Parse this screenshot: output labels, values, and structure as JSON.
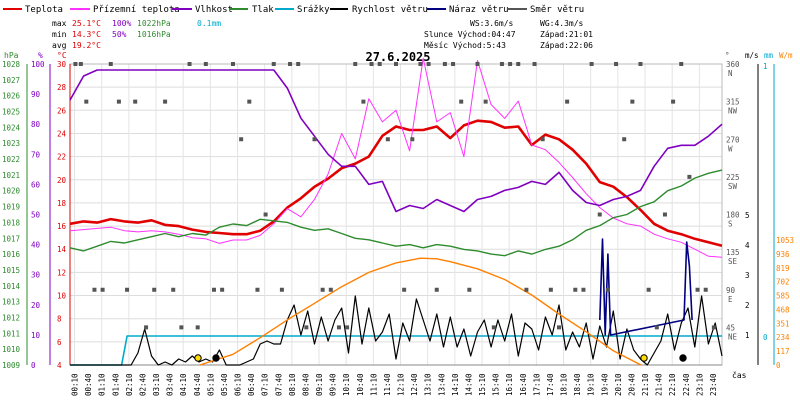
{
  "title": "27.6.2025",
  "legend": [
    {
      "label": "Teplota",
      "color": "#e00000"
    },
    {
      "label": "Přízemní teplota",
      "color": "#ff33ff"
    },
    {
      "label": "Vlhkost",
      "color": "#8000c0"
    },
    {
      "label": "Tlak",
      "color": "#2e8b2e"
    },
    {
      "label": "Srážky",
      "color": "#00aacc"
    },
    {
      "label": "Rychlost větru",
      "color": "#000000"
    },
    {
      "label": "Náraz větru",
      "color": "#000080"
    },
    {
      "label": "Směr větru",
      "color": "#555555"
    }
  ],
  "stats": {
    "max_label": "max",
    "max_temp": "25.1°C",
    "max_hum": "100%",
    "max_press": "1022hPa",
    "max_rain": "0.1mm",
    "min_label": "min",
    "min_temp": "14.3°C",
    "min_hum": "50%",
    "min_press": "1016hPa",
    "avg_label": "avg",
    "avg_temp": "19.2°C"
  },
  "info": {
    "ws": "WS:3.6m/s",
    "wg": "WG:4.3m/s",
    "sun": "Slunce Východ:04:47",
    "sun_set": "Západ:21:01",
    "moon": "Měsíc  Východ:5:43",
    "moon_set": "Západ:22:06"
  },
  "axes": {
    "hpa_unit": "hPa",
    "pct_unit": "%",
    "deg_unit": "°C",
    "dir_unit": "°",
    "ms_unit": "m/s",
    "mm_unit": "mm",
    "wm_unit": "W/m",
    "x_unit": "čas",
    "hpa_ticks": [
      "1028",
      "1027",
      "1026",
      "1025",
      "1024",
      "1023",
      "1022",
      "1021",
      "1020",
      "1019",
      "1018",
      "1017",
      "1016",
      "1015",
      "1014",
      "1013",
      "1012",
      "1011",
      "1010",
      "1009"
    ],
    "pct_ticks": [
      "100",
      "90",
      "80",
      "70",
      "60",
      "50",
      "40",
      "30",
      "20",
      "10",
      "0"
    ],
    "deg_ticks": [
      "30",
      "28",
      "26",
      "24",
      "22",
      "20",
      "18",
      "16",
      "14",
      "12",
      "10",
      "8",
      "6",
      "4"
    ],
    "dir_ticks": [
      {
        "deg": "360",
        "dir": "N"
      },
      {
        "deg": "315",
        "dir": "NW"
      },
      {
        "deg": "270",
        "dir": "W"
      },
      {
        "deg": "225",
        "dir": "SW"
      },
      {
        "deg": "180",
        "dir": "S"
      },
      {
        "deg": "135",
        "dir": "SE"
      },
      {
        "deg": "90",
        "dir": "E"
      },
      {
        "deg": "45",
        "dir": "NE"
      }
    ],
    "ms_ticks": [
      "5",
      "4",
      "3",
      "2",
      "1"
    ],
    "mm_ticks": [
      "1",
      "0"
    ],
    "solar_ticks": [
      "1053",
      "936",
      "819",
      "702",
      "585",
      "468",
      "351",
      "234",
      "117",
      "0"
    ],
    "x_ticks": [
      "00:10",
      "00:40",
      "01:10",
      "01:40",
      "02:10",
      "02:40",
      "03:10",
      "03:40",
      "04:10",
      "04:40",
      "05:10",
      "05:40",
      "06:10",
      "06:40",
      "07:10",
      "07:40",
      "08:10",
      "08:40",
      "09:10",
      "09:40",
      "10:10",
      "10:40",
      "11:10",
      "11:40",
      "12:10",
      "12:40",
      "13:10",
      "13:40",
      "14:10",
      "14:40",
      "15:10",
      "15:40",
      "16:10",
      "16:40",
      "17:10",
      "17:40",
      "18:10",
      "18:40",
      "19:10",
      "19:40",
      "20:10",
      "20:40",
      "21:10",
      "21:40",
      "22:10",
      "22:40",
      "23:10",
      "23:40"
    ]
  },
  "chart_data": {
    "type": "line",
    "x_unit": "hours",
    "x_range": [
      0,
      24
    ],
    "series": [
      {
        "name": "Teplota",
        "axis": "°C",
        "color": "#e00000",
        "x": [
          0,
          0.5,
          1,
          1.5,
          2,
          2.5,
          3,
          3.5,
          4,
          4.5,
          5,
          5.5,
          6,
          6.5,
          7,
          7.5,
          8,
          8.5,
          9,
          9.5,
          10,
          10.5,
          11,
          11.5,
          12,
          12.5,
          13,
          13.5,
          14,
          14.5,
          15,
          15.5,
          16,
          16.5,
          17,
          17.5,
          18,
          18.5,
          19,
          19.5,
          20,
          20.5,
          21,
          21.5,
          22,
          22.5,
          23,
          23.5,
          24
        ],
        "y": [
          16.2,
          16.4,
          16.3,
          16.6,
          16.4,
          16.3,
          16.5,
          16.1,
          16.0,
          15.7,
          15.5,
          15.4,
          15.3,
          15.3,
          15.6,
          16.4,
          17.6,
          18.4,
          19.4,
          20.1,
          21.0,
          21.4,
          22.0,
          23.8,
          24.6,
          24.3,
          24.3,
          24.6,
          23.6,
          24.7,
          25.1,
          25.0,
          24.5,
          24.6,
          23.0,
          23.9,
          23.5,
          22.6,
          21.4,
          19.8,
          19.4,
          18.5,
          17.4,
          16.2,
          15.6,
          15.3,
          14.9,
          14.6,
          14.3
        ]
      },
      {
        "name": "Přízemní teplota",
        "axis": "°C",
        "color": "#ff33ff",
        "x": [
          0,
          0.5,
          1,
          1.5,
          2,
          2.5,
          3,
          3.5,
          4,
          4.5,
          5,
          5.5,
          6,
          6.5,
          7,
          7.5,
          8,
          8.5,
          9,
          9.5,
          10,
          10.5,
          11,
          11.5,
          12,
          12.5,
          13,
          13.5,
          14,
          14.5,
          15,
          15.5,
          16,
          16.5,
          17,
          17.5,
          18,
          18.5,
          19,
          19.5,
          20,
          20.5,
          21,
          21.5,
          22,
          22.5,
          23,
          23.5,
          24
        ],
        "y": [
          15.6,
          15.7,
          15.8,
          15.9,
          15.6,
          15.5,
          15.6,
          15.5,
          15.3,
          15.0,
          14.9,
          14.5,
          14.8,
          14.8,
          15.2,
          16.2,
          17.5,
          16.8,
          18.3,
          20.5,
          24.0,
          21.8,
          27.0,
          25.0,
          26.0,
          22.5,
          30.5,
          25.0,
          25.8,
          22.0,
          30.3,
          26.5,
          25.3,
          26.8,
          23.0,
          22.6,
          21.5,
          20.2,
          18.8,
          17.6,
          16.7,
          16.2,
          16.0,
          15.3,
          14.9,
          14.6,
          14.0,
          13.4,
          13.3
        ]
      },
      {
        "name": "Vlhkost",
        "axis": "%",
        "color": "#8000c0",
        "x": [
          0,
          0.5,
          1,
          2,
          3,
          4,
          5,
          6,
          7,
          7.5,
          8,
          8.5,
          9,
          9.5,
          10,
          10.5,
          11,
          11.5,
          12,
          12.5,
          13,
          13.5,
          14,
          14.5,
          15,
          15.5,
          16,
          16.5,
          17,
          17.5,
          18,
          18.5,
          19,
          19.5,
          20,
          20.5,
          21,
          21.5,
          22,
          22.5,
          23,
          23.5,
          24
        ],
        "y": [
          88,
          96,
          98,
          98,
          98,
          98,
          98,
          98,
          98,
          98,
          92,
          82,
          76,
          70,
          66,
          66,
          60,
          61,
          51,
          53,
          52,
          55,
          53,
          51,
          55,
          56,
          58,
          59,
          61,
          60,
          64,
          58,
          54,
          53,
          55,
          56,
          58,
          66,
          72,
          73,
          73,
          76,
          80
        ]
      },
      {
        "name": "Tlak",
        "axis": "hPa",
        "color": "#2e8b2e",
        "x": [
          0,
          0.5,
          1,
          1.5,
          2,
          2.5,
          3,
          3.5,
          4,
          4.5,
          5,
          5.5,
          6,
          6.5,
          7,
          7.5,
          8,
          8.5,
          9,
          9.5,
          10,
          10.5,
          11,
          11.5,
          12,
          12.5,
          13,
          13.5,
          14,
          14.5,
          15,
          15.5,
          16,
          16.5,
          17,
          17.5,
          18,
          18.5,
          19,
          19.5,
          20,
          20.5,
          21,
          21.5,
          22,
          22.5,
          23,
          23.5,
          24
        ],
        "y": [
          1016.4,
          1016.2,
          1016.5,
          1016.8,
          1016.7,
          1016.9,
          1017.1,
          1017.3,
          1017.1,
          1017.3,
          1017.2,
          1017.7,
          1017.9,
          1017.8,
          1018.2,
          1018.1,
          1018.0,
          1017.7,
          1017.5,
          1017.6,
          1017.3,
          1017.0,
          1016.9,
          1016.7,
          1016.5,
          1016.6,
          1016.4,
          1016.6,
          1016.5,
          1016.3,
          1016.2,
          1016.0,
          1015.9,
          1016.2,
          1016.0,
          1016.3,
          1016.5,
          1016.9,
          1017.5,
          1017.8,
          1018.3,
          1018.5,
          1019.0,
          1019.3,
          1020.0,
          1020.3,
          1020.8,
          1021.1,
          1021.3
        ]
      },
      {
        "name": "Srážky",
        "axis": "mm",
        "color": "#00aacc",
        "x": [
          0,
          1.9,
          2.1,
          24
        ],
        "y": [
          0,
          0,
          0.1,
          0.1
        ]
      },
      {
        "name": "Rychlost větru",
        "axis": "m/s",
        "color": "#000000",
        "x": [
          0,
          0.25,
          0.5,
          0.75,
          1,
          1.25,
          1.5,
          1.75,
          2,
          2.25,
          2.5,
          2.75,
          3,
          3.25,
          3.5,
          3.75,
          4,
          4.25,
          4.5,
          4.75,
          5,
          5.25,
          5.5,
          5.75,
          6,
          6.25,
          6.5,
          6.75,
          7,
          7.25,
          7.5,
          7.75,
          8,
          8.25,
          8.5,
          8.75,
          9,
          9.25,
          9.5,
          9.75,
          10,
          10.25,
          10.5,
          10.75,
          11,
          11.25,
          11.5,
          11.75,
          12,
          12.25,
          12.5,
          12.75,
          13,
          13.25,
          13.5,
          13.75,
          14,
          14.25,
          14.5,
          14.75,
          15,
          15.25,
          15.5,
          15.75,
          16,
          16.25,
          16.5,
          16.75,
          17,
          17.25,
          17.5,
          17.75,
          18,
          18.25,
          18.5,
          18.75,
          19,
          19.25,
          19.5,
          19.75,
          20,
          20.25,
          20.5,
          20.75,
          21,
          21.25,
          21.5,
          21.75,
          22,
          22.25,
          22.5,
          22.75,
          23,
          23.25,
          23.5,
          23.75,
          24
        ],
        "y": [
          0,
          0,
          0,
          0,
          0,
          0,
          0,
          0,
          0,
          0,
          0.4,
          1.2,
          0.3,
          0,
          0.1,
          0,
          0.2,
          0.1,
          0.3,
          0.1,
          0.2,
          0.1,
          0.5,
          0,
          0,
          0,
          0.1,
          0.2,
          0.7,
          0.8,
          0.7,
          0.7,
          1.5,
          2.0,
          1.0,
          1.8,
          0.7,
          1.6,
          0.8,
          1.5,
          1.9,
          0.4,
          2.3,
          0.7,
          1.9,
          0.8,
          1.1,
          1.7,
          0.2,
          1.4,
          0.8,
          2.2,
          1.5,
          0.8,
          1.7,
          0.6,
          1.6,
          0.6,
          1.2,
          0.3,
          1.1,
          1.5,
          0.6,
          1.5,
          0.8,
          1.7,
          0.3,
          1.4,
          1.2,
          0.5,
          1.6,
          1.0,
          2.0,
          0.5,
          1.1,
          0.6,
          1.4,
          0.2,
          1.3,
          0.6,
          1.8,
          0.2,
          1.2,
          0.5,
          0.2,
          0,
          0.4,
          0.8,
          1.7,
          0.5,
          1.4,
          1.9,
          0.6,
          2.3,
          0.7,
          1.4,
          0.3
        ]
      },
      {
        "name": "Náraz větru",
        "axis": "m/s",
        "color": "#000080",
        "x": [
          19.5,
          19.6,
          19.7,
          19.8,
          19.9,
          22.6,
          22.7,
          22.8,
          22.9
        ],
        "y": [
          1.5,
          4.2,
          1.0,
          3.7,
          1.0,
          1.5,
          4.1,
          3.3,
          1.5
        ]
      },
      {
        "name": "Solar",
        "axis": "W/m",
        "color": "#ff8000",
        "x": [
          4.78,
          6,
          7,
          8,
          9,
          10,
          11,
          12,
          12.9,
          13.5,
          14,
          15,
          16,
          17,
          18,
          19,
          20,
          21.02
        ],
        "y": [
          0,
          90,
          230,
          380,
          520,
          660,
          780,
          860,
          900,
          895,
          870,
          810,
          720,
          590,
          430,
          280,
          120,
          0
        ]
      },
      {
        "name": "Směr větru",
        "axis": "°",
        "color": "#555555",
        "x": [
          0.2,
          0.4,
          0.6,
          0.9,
          1.2,
          1.5,
          1.8,
          2.1,
          2.4,
          2.8,
          3.1,
          3.5,
          3.8,
          4.1,
          4.4,
          4.7,
          5.0,
          5.3,
          5.6,
          6.0,
          6.3,
          6.6,
          6.9,
          7.2,
          7.5,
          7.8,
          8.1,
          8.4,
          8.7,
          9.0,
          9.3,
          9.6,
          9.9,
          10.2,
          10.5,
          10.8,
          11.1,
          11.4,
          11.7,
          12.0,
          12.3,
          12.6,
          12.9,
          13.2,
          13.5,
          13.8,
          14.1,
          14.4,
          14.7,
          15.0,
          15.3,
          15.6,
          15.9,
          16.2,
          16.5,
          16.8,
          17.1,
          17.4,
          17.7,
          18.0,
          18.3,
          18.6,
          18.9,
          19.2,
          19.5,
          19.8,
          20.1,
          20.4,
          20.7,
          21.0,
          21.3,
          21.6,
          21.9,
          22.2,
          22.5,
          22.8,
          23.1,
          23.4,
          23.7
        ],
        "y": [
          360,
          360,
          315,
          90,
          90,
          360,
          315,
          90,
          315,
          45,
          90,
          315,
          90,
          45,
          360,
          45,
          360,
          90,
          90,
          360,
          270,
          315,
          90,
          180,
          360,
          90,
          360,
          360,
          45,
          270,
          90,
          90,
          45,
          45,
          360,
          315,
          360,
          360,
          270,
          360,
          90,
          270,
          360,
          360,
          90,
          360,
          360,
          315,
          90,
          360,
          315,
          45,
          360,
          360,
          360,
          90,
          360,
          270,
          90,
          45,
          315,
          90,
          90,
          360,
          180,
          90,
          360,
          270,
          315,
          360,
          90,
          45,
          180,
          315,
          360,
          225,
          90,
          90,
          45
        ]
      }
    ]
  }
}
